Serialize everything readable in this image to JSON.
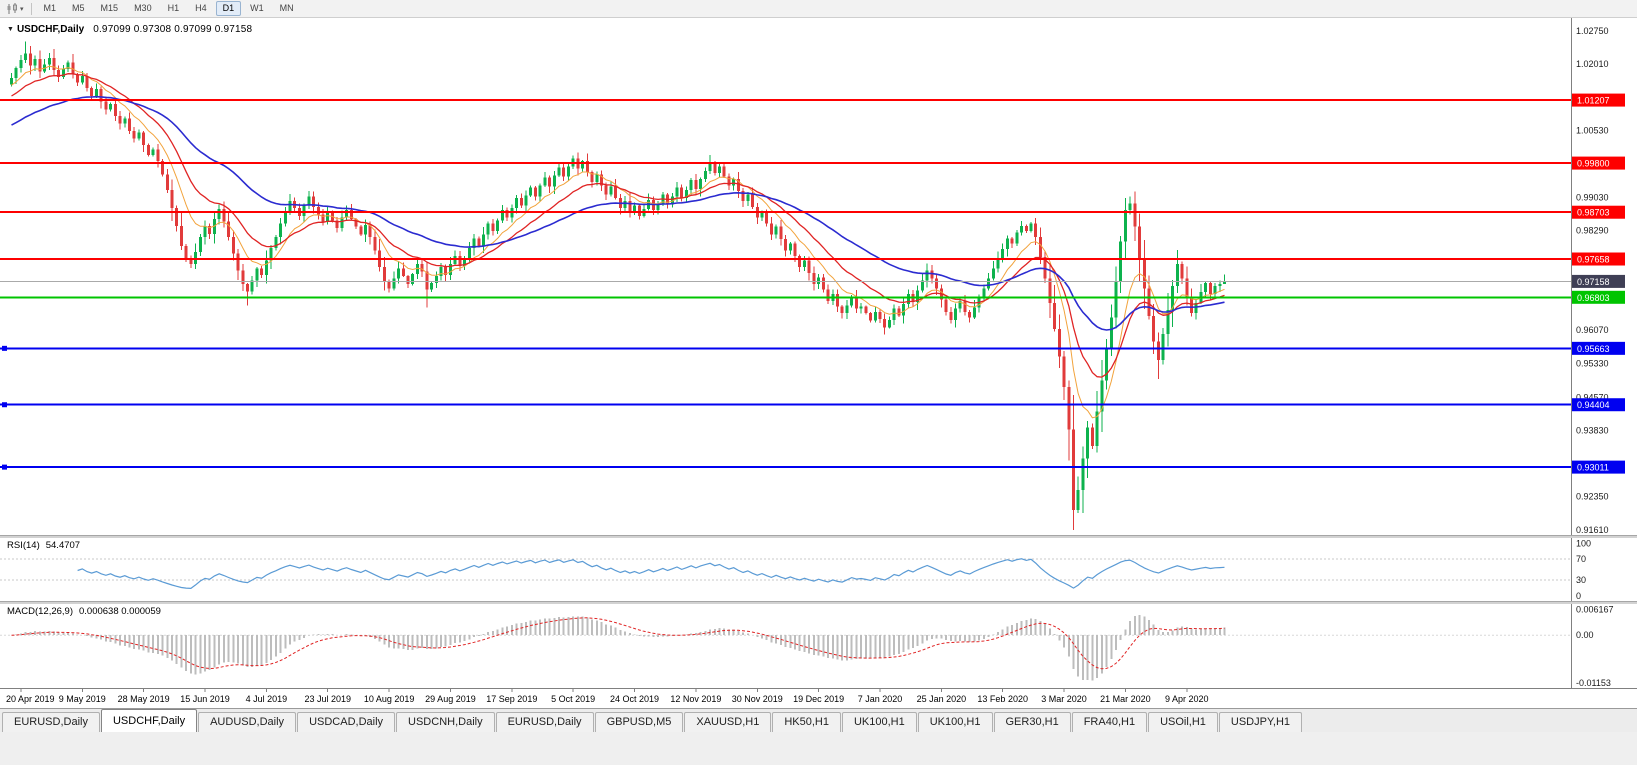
{
  "toolbar": {
    "timeframes": [
      "M1",
      "M5",
      "M15",
      "M30",
      "H1",
      "H4",
      "D1",
      "W1",
      "MN"
    ],
    "active_timeframe": "D1"
  },
  "tabs": {
    "items": [
      "EURUSD,Daily",
      "USDCHF,Daily",
      "AUDUSD,Daily",
      "USDCAD,Daily",
      "USDCNH,Daily",
      "EURUSD,Daily",
      "GBPUSD,M5",
      "XAUUSD,H1",
      "HK50,H1",
      "UK100,H1",
      "UK100,H1",
      "GER30,H1",
      "FRA40,H1",
      "USOil,H1",
      "USDJPY,H1"
    ],
    "active_index": 1
  },
  "colors": {
    "candle_up": "#0db24d",
    "candle_down": "#e13b3b",
    "ma_fast": "#f2a33c",
    "ma_mid": "#e02424",
    "ma_slow": "#2b2bd0",
    "rsi_line": "#5b9bd5",
    "macd_hist": "#bdbdbd",
    "macd_signal": "#e02424",
    "level_red": "#fe0000",
    "level_green": "#00c400",
    "level_blue": "#0000f0",
    "current_line": "#aaaaaa",
    "current_label_bg": "#3f3f55",
    "axis_text": "#1a1a1a"
  },
  "chart_data": {
    "type": "candlestick",
    "symbol": "USDCHF",
    "period": "Daily",
    "title": "USDCHF,Daily",
    "ohlc_text": "0.97099 0.97308 0.97099 0.97158",
    "last_candle": {
      "open": 0.97099,
      "high": 0.97308,
      "low": 0.97099,
      "close": 0.97158
    },
    "y_range": [
      0.91495,
      1.0304
    ],
    "y_ticks": [
      "1.02750",
      "1.02010",
      "1.00530",
      "0.99030",
      "0.98290",
      "0.96070",
      "0.95330",
      "0.94570",
      "0.93830",
      "0.92350",
      "0.91610"
    ],
    "x_labels": [
      "20 Apr 2019",
      "9 May 2019",
      "28 May 2019",
      "15 Jun 2019",
      "4 Jul 2019",
      "23 Jul 2019",
      "10 Aug 2019",
      "29 Aug 2019",
      "17 Sep 2019",
      "5 Oct 2019",
      "24 Oct 2019",
      "12 Nov 2019",
      "30 Nov 2019",
      "19 Dec 2019",
      "7 Jan 2020",
      "25 Jan 2020",
      "13 Feb 2020",
      "3 Mar 2020",
      "21 Mar 2020",
      "9 Apr 2020"
    ],
    "levels": [
      {
        "price": 1.01207,
        "text": "1.01207",
        "color": "level_red",
        "width": 2
      },
      {
        "price": 0.998,
        "text": "0.99800",
        "color": "level_red",
        "width": 2
      },
      {
        "price": 0.98703,
        "text": "0.98703",
        "color": "level_red",
        "width": 2
      },
      {
        "price": 0.97658,
        "text": "0.97658",
        "color": "level_red",
        "width": 2
      },
      {
        "price": 0.97158,
        "text": "0.97158",
        "color": "current_line",
        "width": 1,
        "label_bg": "current_label_bg"
      },
      {
        "price": 0.96803,
        "text": "0.96803",
        "color": "level_green",
        "width": 2
      },
      {
        "price": 0.95663,
        "text": "0.95663",
        "color": "level_blue",
        "width": 2,
        "handle": true
      },
      {
        "price": 0.94404,
        "text": "0.94404",
        "color": "level_blue",
        "width": 2,
        "handle": true
      },
      {
        "price": 0.93011,
        "text": "0.93011",
        "color": "level_blue",
        "width": 2,
        "handle": true
      }
    ],
    "closes": [
      1.017,
      1.0192,
      1.021,
      1.0225,
      1.0198,
      1.0212,
      1.0185,
      1.02,
      1.0215,
      1.0188,
      1.0172,
      1.019,
      1.0205,
      1.0178,
      1.016,
      1.0175,
      1.0148,
      1.013,
      1.0145,
      1.0118,
      1.01,
      1.0112,
      1.0085,
      1.0068,
      1.008,
      1.0052,
      1.0035,
      1.0048,
      1.002,
      0.9998,
      1.001,
      0.9985,
      0.9955,
      0.992,
      0.988,
      0.984,
      0.9795,
      0.9768,
      0.9755,
      0.9782,
      0.9815,
      0.984,
      0.9822,
      0.9855,
      0.9878,
      0.985,
      0.9815,
      0.9778,
      0.974,
      0.971,
      0.9693,
      0.9718,
      0.9745,
      0.973,
      0.9762,
      0.979,
      0.9815,
      0.9845,
      0.9872,
      0.9895,
      0.988,
      0.9862,
      0.9885,
      0.9905,
      0.9882,
      0.9865,
      0.9848,
      0.987,
      0.9852,
      0.9835,
      0.9858,
      0.9875,
      0.9855,
      0.9838,
      0.982,
      0.9842,
      0.9815,
      0.9785,
      0.9748,
      0.9715,
      0.97,
      0.9722,
      0.9745,
      0.9728,
      0.971,
      0.9732,
      0.9755,
      0.9738,
      0.9698,
      0.9712,
      0.9728,
      0.9748,
      0.973,
      0.9755,
      0.9772,
      0.975,
      0.9768,
      0.979,
      0.9812,
      0.9795,
      0.982,
      0.9845,
      0.9828,
      0.9852,
      0.9875,
      0.9858,
      0.988,
      0.9902,
      0.9885,
      0.9908,
      0.9925,
      0.9905,
      0.993,
      0.9948,
      0.9928,
      0.9952,
      0.997,
      0.995,
      0.9972,
      0.999,
      0.9968,
      0.9985,
      0.996,
      0.9938,
      0.9955,
      0.993,
      0.991,
      0.9928,
      0.9902,
      0.988,
      0.9895,
      0.987,
      0.9885,
      0.9862,
      0.9878,
      0.9898,
      0.9875,
      0.989,
      0.991,
      0.9888,
      0.9905,
      0.9925,
      0.9902,
      0.992,
      0.9942,
      0.9922,
      0.9945,
      0.9962,
      0.9978,
      0.9958,
      0.9972,
      0.995,
      0.993,
      0.9945,
      0.9918,
      0.9895,
      0.991,
      0.9882,
      0.9858,
      0.9872,
      0.9845,
      0.982,
      0.9838,
      0.981,
      0.9785,
      0.98,
      0.9772,
      0.9748,
      0.9762,
      0.9735,
      0.971,
      0.9725,
      0.9698,
      0.9672,
      0.9688,
      0.966,
      0.9645,
      0.9662,
      0.968,
      0.9655,
      0.966,
      0.9645,
      0.9628,
      0.9648,
      0.9632,
      0.9613,
      0.963,
      0.9655,
      0.964,
      0.9665,
      0.9688,
      0.967,
      0.9695,
      0.9718,
      0.974,
      0.9722,
      0.97,
      0.9675,
      0.9648,
      0.963,
      0.9655,
      0.9672,
      0.9648,
      0.9635,
      0.9658,
      0.968,
      0.97,
      0.9722,
      0.9745,
      0.9768,
      0.9788,
      0.9812,
      0.98,
      0.9825,
      0.984,
      0.9828,
      0.9845,
      0.9815,
      0.977,
      0.9722,
      0.9668,
      0.961,
      0.9548,
      0.948,
      0.9385,
      0.9205,
      0.925,
      0.932,
      0.939,
      0.9348,
      0.9425,
      0.9495,
      0.9565,
      0.9635,
      0.9715,
      0.9805,
      0.9875,
      0.989,
      0.9838,
      0.9768,
      0.97,
      0.9638,
      0.9582,
      0.954,
      0.9598,
      0.9652,
      0.9705,
      0.9755,
      0.9722,
      0.968,
      0.9645,
      0.9668,
      0.9692,
      0.9712,
      0.9688,
      0.9705,
      0.971,
      0.9716
    ],
    "overrides": {
      "3": {
        "h": 1.0252
      },
      "50": {
        "l": 0.9662
      },
      "88": {
        "l": 0.9658
      },
      "148": {
        "h": 0.9998
      },
      "185": {
        "l": 0.9597
      },
      "225": {
        "l": 0.9161
      },
      "237": {
        "h": 0.9905
      },
      "243": {
        "l": 0.9498
      },
      "257": {
        "o": 0.97099,
        "h": 0.97308,
        "l": 0.97099
      }
    },
    "indicators": {
      "rsi": {
        "label": "RSI(14)",
        "value_text": "54.4707",
        "value": 54.4707,
        "period": 14,
        "level_lines": [
          70,
          30
        ],
        "scale_ticks": [
          {
            "text": "100",
            "v": 100
          },
          {
            "text": "70",
            "v": 70
          },
          {
            "text": "30",
            "v": 30
          },
          {
            "text": "0",
            "v": 0
          }
        ]
      },
      "macd": {
        "label": "MACD(12,26,9)",
        "value_text": "0.000638 0.000059",
        "values": [
          0.000638,
          5.9e-05
        ],
        "fast": 12,
        "slow": 26,
        "signal": 9,
        "scale_ticks": [
          {
            "text": "0.006167",
            "v": 0.006167
          },
          {
            "text": "0.00",
            "v": 0
          },
          {
            "text": "-0.01153",
            "v": -0.01153
          }
        ]
      }
    }
  }
}
